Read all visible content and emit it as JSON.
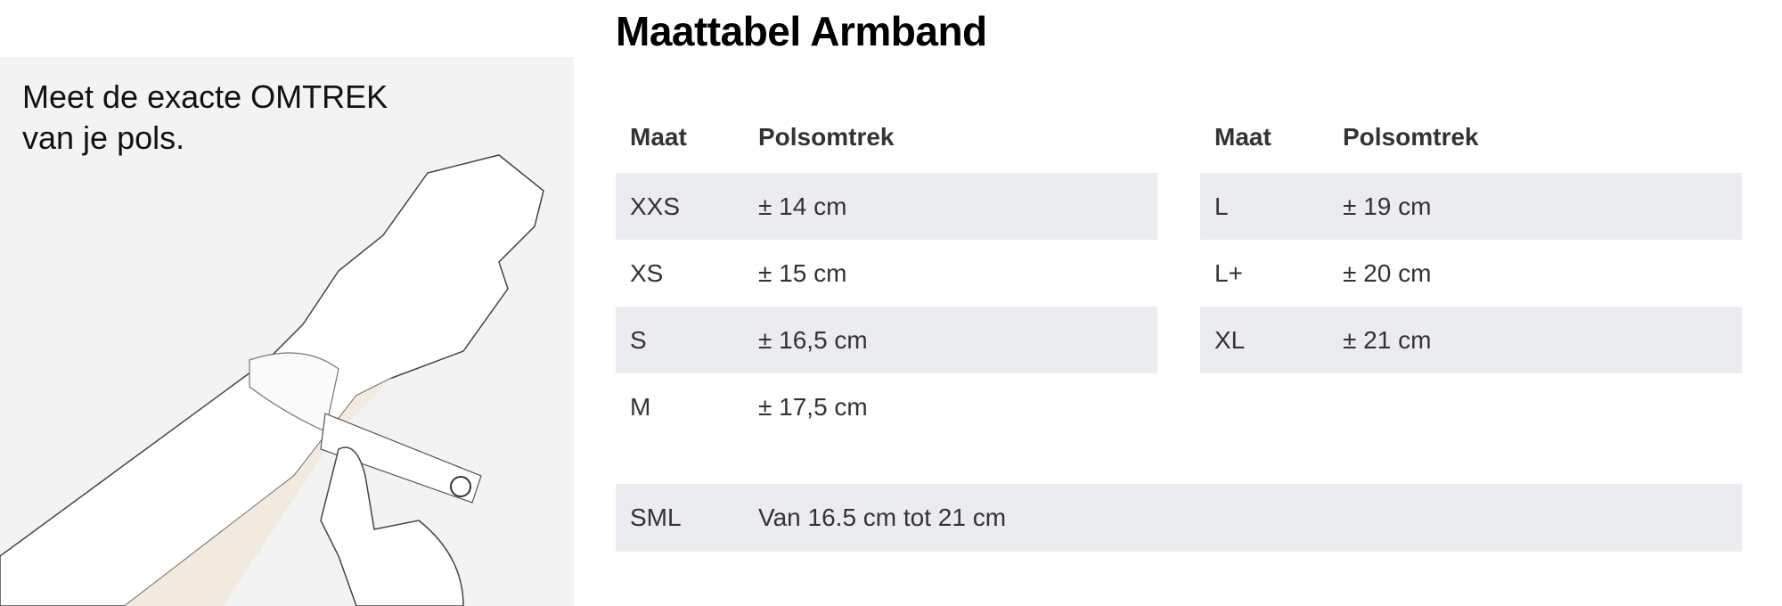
{
  "title": "Maattabel Armband",
  "instruction": {
    "line1": "Meet de exacte OMTREK",
    "line2": "van je pols."
  },
  "table_headers": {
    "size": "Maat",
    "circumference": "Polsomtrek"
  },
  "left_table": [
    {
      "size": "XXS",
      "circumference": "± 14 cm"
    },
    {
      "size": "XS",
      "circumference": "± 15 cm"
    },
    {
      "size": "S",
      "circumference": "± 16,5 cm"
    },
    {
      "size": "M",
      "circumference": "± 17,5 cm"
    }
  ],
  "right_table": [
    {
      "size": "L",
      "circumference": "± 19 cm"
    },
    {
      "size": "L+",
      "circumference": "± 20 cm"
    },
    {
      "size": "XL",
      "circumference": "± 21 cm"
    }
  ],
  "sml_row": {
    "size": "SML",
    "circumference": "Van 16.5 cm tot 21 cm"
  },
  "colors": {
    "row_shade": "#ebecf0",
    "panel_bg": "#f3f3f3"
  }
}
